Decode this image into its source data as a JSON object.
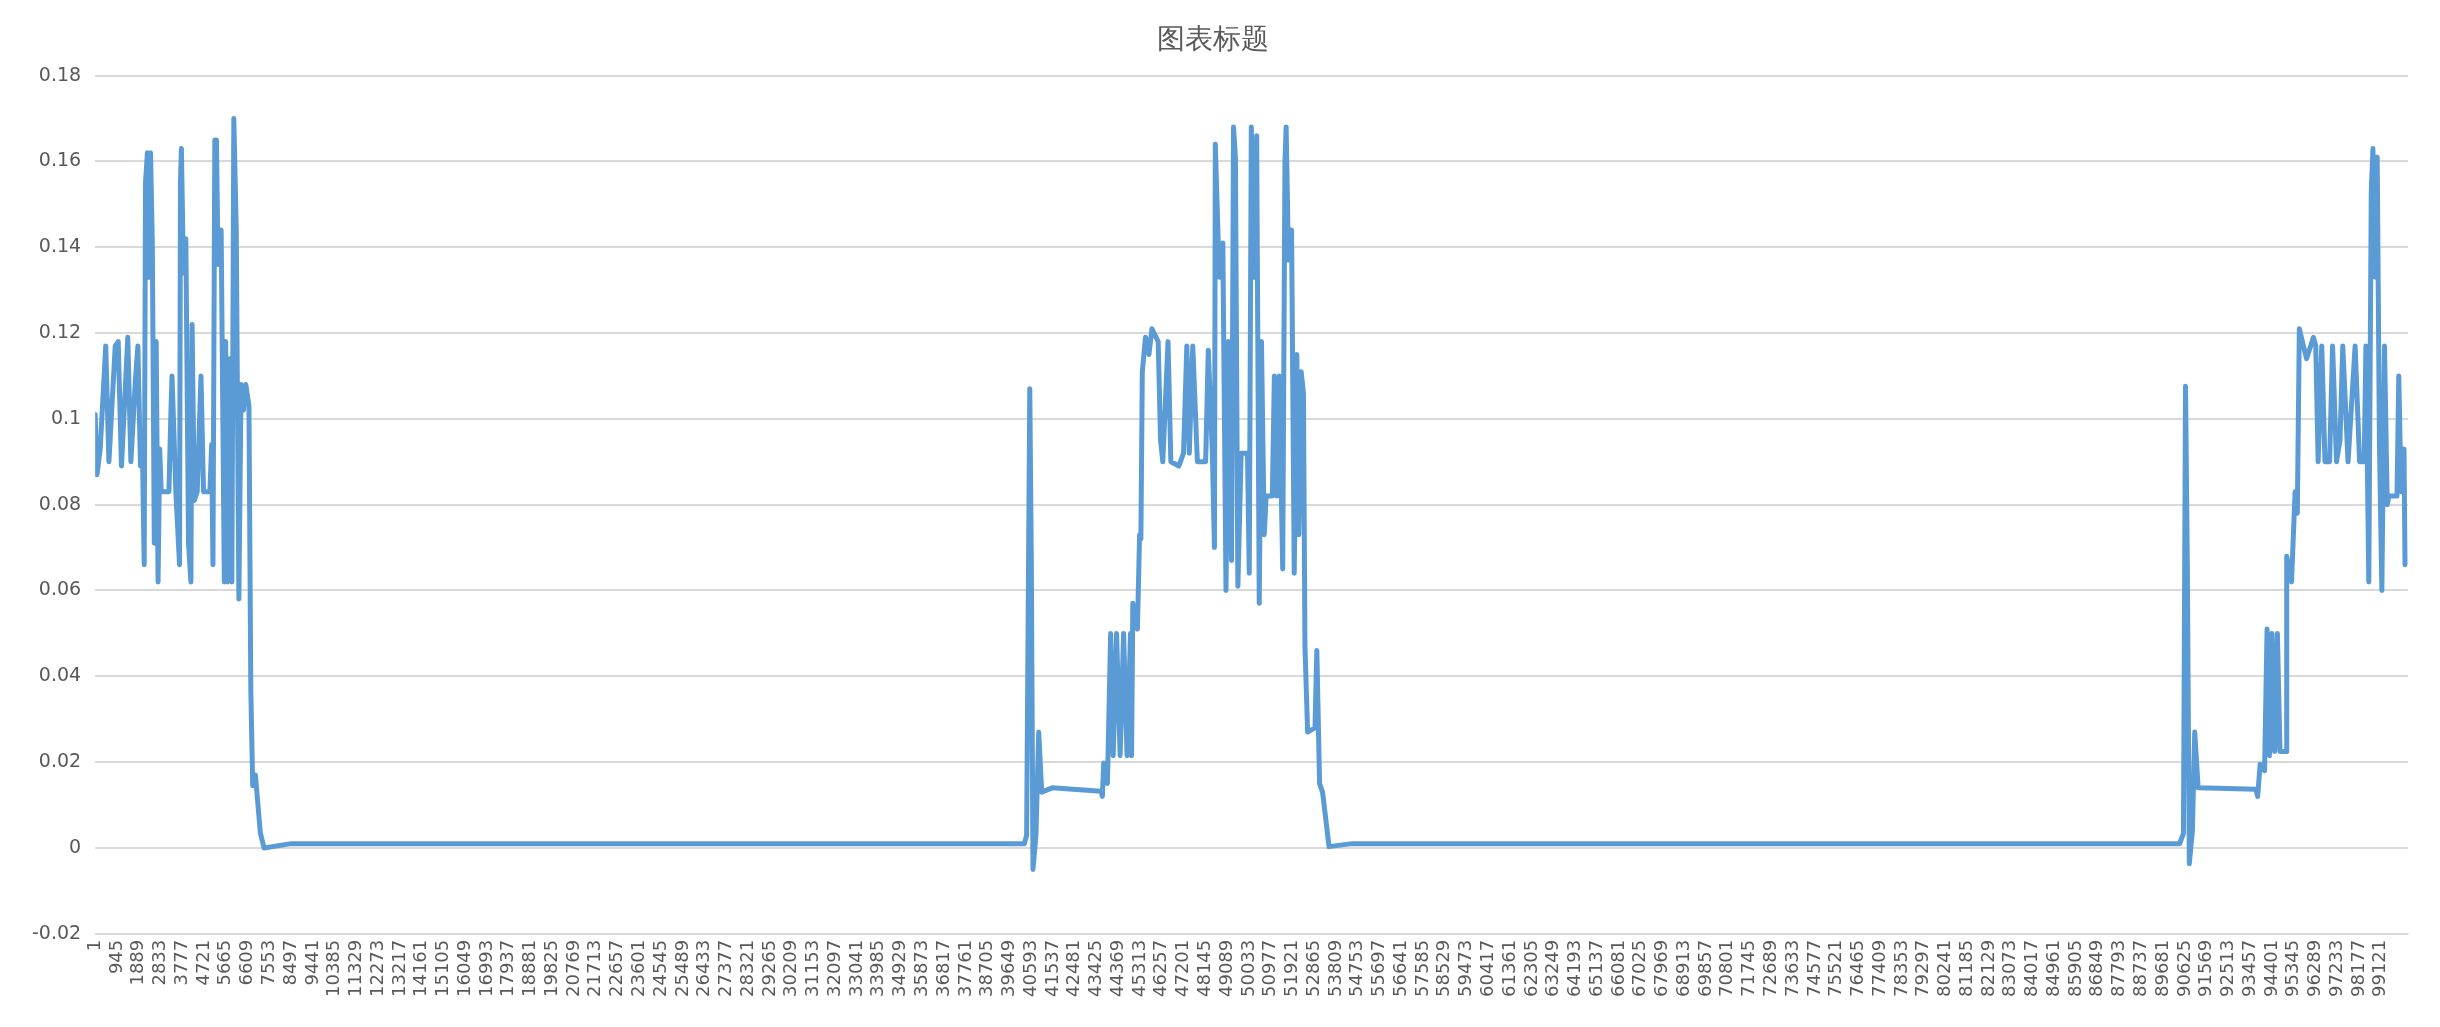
{
  "chart_data": {
    "type": "line",
    "title": "图表标题",
    "x": [
      1,
      80,
      220,
      460,
      597,
      872,
      1000,
      1142,
      1416,
      1550,
      1746,
      1854,
      1965,
      2050,
      2128,
      2184,
      2266,
      2330,
      2403,
      2480,
      2566,
      2648,
      2729,
      2800,
      2866,
      3200,
      3278,
      3334,
      3500,
      3660,
      3700,
      3741,
      3830,
      3934,
      4050,
      4153,
      4205,
      4300,
      4427,
      4590,
      4700,
      4976,
      5053,
      5109,
      5190,
      5260,
      5330,
      5465,
      5602,
      5660,
      5740,
      5830,
      5929,
      6014,
      6120,
      6233,
      6330,
      6430,
      6533,
      6670,
      6751,
      6833,
      6950,
      7164,
      7327,
      8500,
      15000,
      22000,
      30000,
      37000,
      40300,
      40395,
      40532,
      40600,
      40670,
      40800,
      40919,
      41050,
      41500,
      43621,
      43680,
      43737,
      43900,
      44038,
      44150,
      44295,
      44450,
      44600,
      44750,
      44900,
      44946,
      45000,
      45200,
      45294,
      45350,
      45412,
      45550,
      45700,
      45829,
      46100,
      46203,
      46300,
      46527,
      46650,
      46995,
      47200,
      47342,
      47450,
      47600,
      47800,
      48158,
      48273,
      48450,
      48540,
      48578,
      48750,
      48904,
      49041,
      49150,
      49280,
      49367,
      49450,
      49556,
      49700,
      49972,
      50050,
      50139,
      50250,
      50371,
      50483,
      50580,
      50700,
      50783,
      51050,
      51139,
      51250,
      51349,
      51500,
      51598,
      51650,
      51750,
      51885,
      52000,
      52113,
      52200,
      52302,
      52400,
      52465,
      52581,
      52900,
      52980,
      53100,
      53229,
      53509,
      54500,
      60000,
      70000,
      80000,
      90400,
      90562,
      90652,
      90730,
      90816,
      90950,
      91051,
      91200,
      93703,
      93780,
      93888,
      94080,
      94188,
      94300,
      94400,
      94520,
      94636,
      94750,
      95030,
      95040,
      95250,
      95403,
      95500,
      95588,
      95900,
      96200,
      96300,
      96403,
      96560,
      96700,
      96900,
      97029,
      97200,
      97350,
      97471,
      97700,
      98007,
      98200,
      98400,
      98475,
      98600,
      98707,
      98780,
      98880,
      98965,
      99060,
      99166,
      99280,
      99400,
      99475,
      99822,
      99900,
      100000,
      100127,
      100170
    ],
    "series": [
      {
        "color": "#5b9bd5",
        "values": [
          0.101,
          0.087,
          0.093,
          0.117,
          0.09,
          0.117,
          0.118,
          0.089,
          0.119,
          0.09,
          0.109,
          0.117,
          0.089,
          0.093,
          0.066,
          0.155,
          0.162,
          0.133,
          0.162,
          0.141,
          0.071,
          0.118,
          0.062,
          0.093,
          0.083,
          0.083,
          0.1,
          0.11,
          0.083,
          0.066,
          0.155,
          0.163,
          0.134,
          0.142,
          0.071,
          0.062,
          0.122,
          0.081,
          0.083,
          0.11,
          0.083,
          0.083,
          0.094,
          0.066,
          0.165,
          0.165,
          0.136,
          0.144,
          0.062,
          0.118,
          0.062,
          0.114,
          0.062,
          0.17,
          0.144,
          0.058,
          0.108,
          0.102,
          0.108,
          0.103,
          0.037,
          0.0145,
          0.017,
          0.0035,
          0,
          0.001,
          0.001,
          0.001,
          0.001,
          0.001,
          0.001,
          0.003,
          0.107,
          0.066,
          -0.005,
          0.003,
          0.027,
          0.013,
          0.014,
          0.0132,
          0.012,
          0.0198,
          0.015,
          0.05,
          0.0215,
          0.05,
          0.0215,
          0.05,
          0.0215,
          0.05,
          0.0215,
          0.057,
          0.051,
          0.073,
          0.072,
          0.111,
          0.119,
          0.115,
          0.121,
          0.118,
          0.095,
          0.09,
          0.118,
          0.09,
          0.089,
          0.092,
          0.117,
          0.092,
          0.117,
          0.09,
          0.09,
          0.116,
          0.092,
          0.07,
          0.164,
          0.133,
          0.141,
          0.06,
          0.118,
          0.067,
          0.168,
          0.161,
          0.061,
          0.092,
          0.092,
          0.064,
          0.168,
          0.133,
          0.166,
          0.057,
          0.118,
          0.073,
          0.082,
          0.082,
          0.11,
          0.082,
          0.11,
          0.065,
          0.16,
          0.168,
          0.137,
          0.144,
          0.064,
          0.115,
          0.073,
          0.111,
          0.106,
          0.047,
          0.027,
          0.028,
          0.046,
          0.015,
          0.013,
          0.0003,
          0.001,
          0.001,
          0.001,
          0.001,
          0.001,
          0.0034,
          0.1076,
          0.066,
          -0.0037,
          0.004,
          0.027,
          0.014,
          0.0137,
          0.012,
          0.0195,
          0.018,
          0.051,
          0.0215,
          0.05,
          0.0225,
          0.05,
          0.0225,
          0.0225,
          0.068,
          0.062,
          0.083,
          0.078,
          0.121,
          0.114,
          0.119,
          0.117,
          0.09,
          0.117,
          0.09,
          0.09,
          0.117,
          0.09,
          0.095,
          0.117,
          0.09,
          0.117,
          0.09,
          0.09,
          0.117,
          0.062,
          0.153,
          0.163,
          0.133,
          0.161,
          0.095,
          0.06,
          0.117,
          0.08,
          0.082,
          0.082,
          0.11,
          0.083,
          0.093,
          0.066
        ]
      }
    ],
    "xlim": [
      1,
      100300
    ],
    "xticks": [
      1,
      945,
      1889,
      2833,
      3777,
      4721,
      5665,
      6609,
      7553,
      8497,
      9441,
      10385,
      11329,
      12273,
      13217,
      14161,
      15105,
      16049,
      16993,
      17937,
      18881,
      19825,
      20769,
      21713,
      22657,
      23601,
      24545,
      25489,
      26433,
      27377,
      28321,
      29265,
      30209,
      31153,
      32097,
      33041,
      33985,
      34929,
      35873,
      36817,
      37761,
      38705,
      39649,
      40593,
      41537,
      42481,
      43425,
      44369,
      45313,
      46257,
      47201,
      48145,
      49089,
      50033,
      50977,
      51921,
      52865,
      53809,
      54753,
      55697,
      56641,
      57585,
      58529,
      59473,
      60417,
      61361,
      62305,
      63249,
      64193,
      65137,
      66081,
      67025,
      67969,
      68913,
      69857,
      70801,
      71745,
      72689,
      73633,
      74577,
      75521,
      76465,
      77409,
      78353,
      79297,
      80241,
      81185,
      82129,
      83073,
      84017,
      84961,
      85905,
      86849,
      87793,
      88737,
      89681,
      90625,
      91569,
      92513,
      93457,
      94401,
      95345,
      96289,
      97233,
      98177,
      99121
    ],
    "ylim": [
      -0.02,
      0.18
    ],
    "yticks": [
      -0.02,
      0,
      0.02,
      0.04,
      0.06,
      0.08,
      0.1,
      0.12,
      0.14,
      0.16,
      0.18
    ],
    "grid": "y",
    "legend": false,
    "marker": "none",
    "line_style": "solid"
  }
}
